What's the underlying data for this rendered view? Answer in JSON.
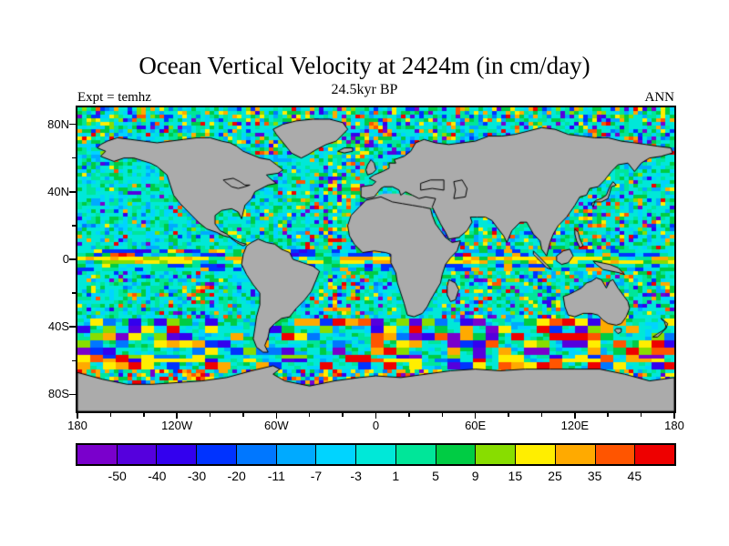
{
  "title": "Ocean Vertical Velocity at 2424m (in cm/day)",
  "subtitle": "24.5kyr BP",
  "expt_label": "Expt = temhz",
  "season_label": "ANN",
  "chart_data": {
    "type": "heatmap",
    "title": "Ocean Vertical Velocity at 2424m (in cm/day)",
    "subtitle": "24.5kyr BP",
    "experiment_label": "Expt = temhz",
    "season_label": "ANN",
    "units": "cm/day",
    "depth_m": 2424,
    "x_axis": {
      "tick_labels": [
        "180",
        "120W",
        "60W",
        "0",
        "60E",
        "120E",
        "180"
      ],
      "tick_lons": [
        -180,
        -120,
        -60,
        0,
        60,
        120,
        180
      ]
    },
    "y_axis": {
      "tick_labels": [
        "80N",
        "40N",
        "0",
        "40S",
        "80S"
      ],
      "tick_lats": [
        80,
        40,
        0,
        -40,
        -80
      ]
    },
    "colorbar": {
      "tick_labels": [
        "-50",
        "-40",
        "-30",
        "-20",
        "-11",
        "-7",
        "-3",
        "1",
        "5",
        "9",
        "15",
        "25",
        "35",
        "45"
      ],
      "levels": [
        -50,
        -40,
        -30,
        -20,
        -11,
        -7,
        -3,
        1,
        5,
        9,
        15,
        25,
        35,
        45
      ],
      "colors": [
        "#7A00CC",
        "#5500DD",
        "#3300EE",
        "#0033FF",
        "#0077FF",
        "#00AAFF",
        "#00D4FF",
        "#00E8D8",
        "#00E699",
        "#00CC44",
        "#88DD00",
        "#FFEE00",
        "#FFAA00",
        "#FF5500",
        "#EE0000"
      ]
    },
    "land_color": "#ABABAB"
  }
}
